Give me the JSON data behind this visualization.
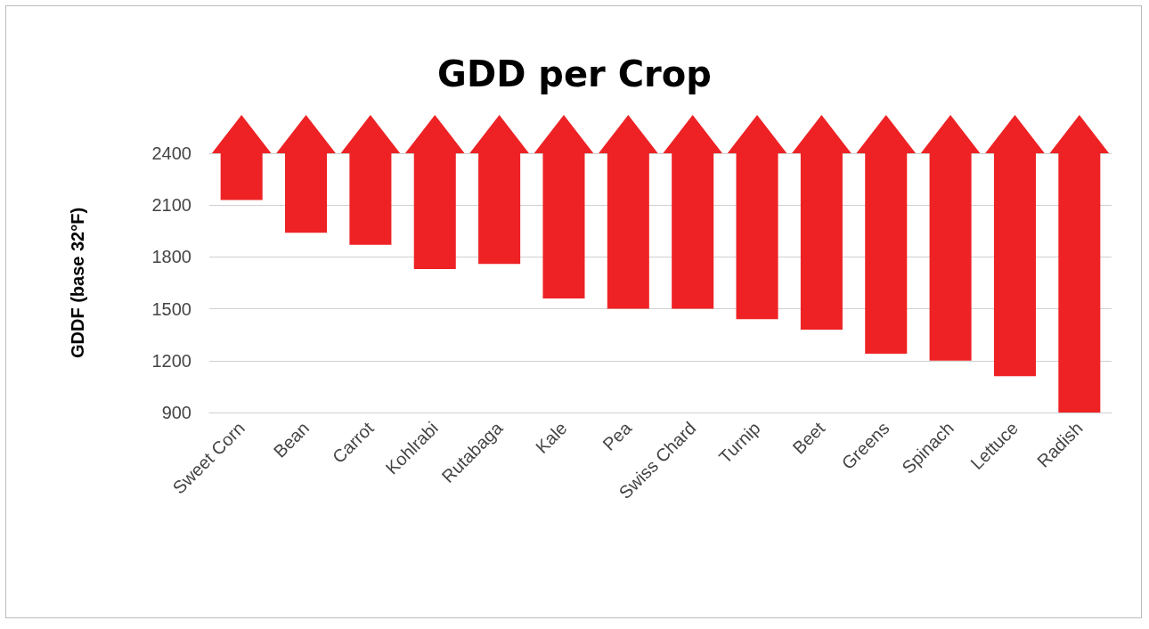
{
  "chart_data": {
    "type": "bar",
    "title": "GDD per Crop",
    "ylabel": "GDDF (base 32°F)",
    "categories": [
      "Sweet Corn",
      "Bean",
      "Carrot",
      "Kohlrabi",
      "Rutabaga",
      "Kale",
      "Pea",
      "Swiss Chard",
      "Turnip",
      "Beet",
      "Greens",
      "Spinach",
      "Lettuce",
      "Radish"
    ],
    "base": [
      2130,
      1940,
      1870,
      1730,
      1760,
      1560,
      1500,
      1500,
      1440,
      1380,
      1240,
      1200,
      1110,
      900
    ],
    "values": [
      270,
      460,
      530,
      670,
      640,
      840,
      900,
      900,
      960,
      1020,
      1160,
      1200,
      1290,
      1500
    ],
    "color": "#ee2224",
    "ylim": [
      900,
      2400
    ],
    "yticks": [
      900,
      1200,
      1500,
      1800,
      2100,
      2400
    ],
    "grid": "y"
  }
}
